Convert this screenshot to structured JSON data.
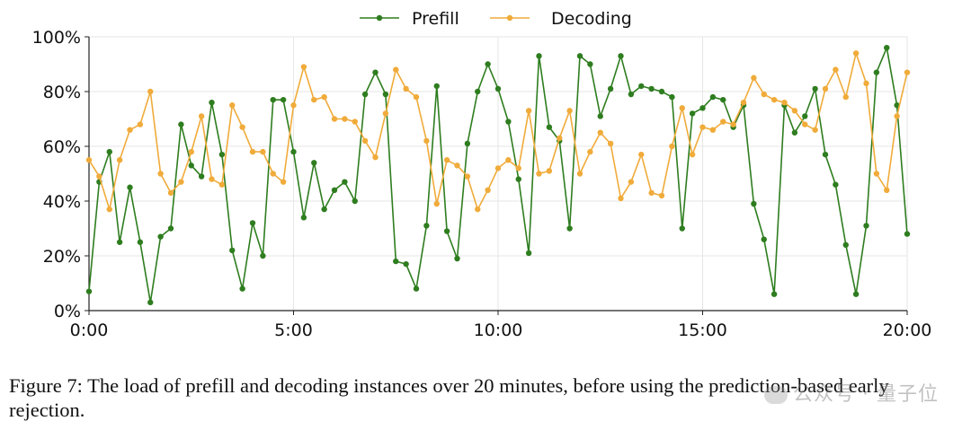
{
  "chart_data": {
    "type": "line",
    "title": "",
    "xlabel": "",
    "ylabel": "",
    "xlim": [
      0,
      20
    ],
    "ylim": [
      0,
      100
    ],
    "x_ticks": [
      0,
      5,
      10,
      15,
      20
    ],
    "x_tick_labels": [
      "0:00",
      "5:00",
      "10:00",
      "15:00",
      "20:00"
    ],
    "y_ticks": [
      0,
      20,
      40,
      60,
      80,
      100
    ],
    "y_tick_labels": [
      "0%",
      "20%",
      "40%",
      "60%",
      "80%",
      "100%"
    ],
    "grid": true,
    "legend_position": "top-center",
    "x": [
      0,
      0.25,
      0.5,
      0.75,
      1,
      1.25,
      1.5,
      1.75,
      2,
      2.25,
      2.5,
      2.75,
      3,
      3.25,
      3.5,
      3.75,
      4,
      4.25,
      4.5,
      4.75,
      5,
      5.25,
      5.5,
      5.75,
      6,
      6.25,
      6.5,
      6.75,
      7,
      7.25,
      7.5,
      7.75,
      8,
      8.25,
      8.5,
      8.75,
      9,
      9.25,
      9.5,
      9.75,
      10,
      10.25,
      10.5,
      10.75,
      11,
      11.25,
      11.5,
      11.75,
      12,
      12.25,
      12.5,
      12.75,
      13,
      13.25,
      13.5,
      13.75,
      14,
      14.25,
      14.5,
      14.75,
      15,
      15.25,
      15.5,
      15.75,
      16,
      16.25,
      16.5,
      16.75,
      17,
      17.25,
      17.5,
      17.75,
      18,
      18.25,
      18.5,
      18.75,
      19,
      19.25,
      19.5,
      19.75,
      20
    ],
    "series": [
      {
        "name": "Prefill",
        "color": "#2e7d1f",
        "values": [
          7,
          47,
          58,
          25,
          45,
          25,
          3,
          27,
          30,
          68,
          53,
          49,
          76,
          57,
          22,
          8,
          32,
          20,
          77,
          77,
          58,
          34,
          54,
          37,
          44,
          47,
          40,
          79,
          87,
          79,
          18,
          17,
          8,
          31,
          82,
          29,
          19,
          61,
          80,
          90,
          81,
          69,
          48,
          21,
          93,
          67,
          62,
          30,
          93,
          90,
          71,
          81,
          93,
          79,
          82,
          81,
          80,
          78,
          30,
          72,
          74,
          78,
          77,
          67,
          75,
          39,
          26,
          6,
          75,
          65,
          71,
          81,
          57,
          46,
          24,
          6,
          31,
          87,
          96,
          75,
          28
        ]
      },
      {
        "name": "Decoding",
        "color": "#f0ab3a",
        "values": [
          55,
          49,
          37,
          55,
          66,
          68,
          80,
          50,
          43,
          47,
          58,
          71,
          48,
          46,
          75,
          67,
          58,
          58,
          50,
          47,
          75,
          89,
          77,
          78,
          70,
          70,
          69,
          62,
          56,
          72,
          88,
          81,
          78,
          62,
          39,
          55,
          53,
          49,
          37,
          44,
          52,
          55,
          52,
          73,
          50,
          51,
          63,
          73,
          50,
          58,
          65,
          61,
          41,
          47,
          57,
          43,
          42,
          60,
          74,
          57,
          67,
          66,
          69,
          68,
          76,
          85,
          79,
          77,
          76,
          73,
          68,
          66,
          81,
          88,
          78,
          94,
          83,
          50,
          44,
          71,
          87
        ]
      }
    ]
  },
  "caption": "Figure 7: The load of prefill and decoding instances over 20 minutes, before using the prediction-based early rejection.",
  "watermark": "公众号 · 量子位"
}
